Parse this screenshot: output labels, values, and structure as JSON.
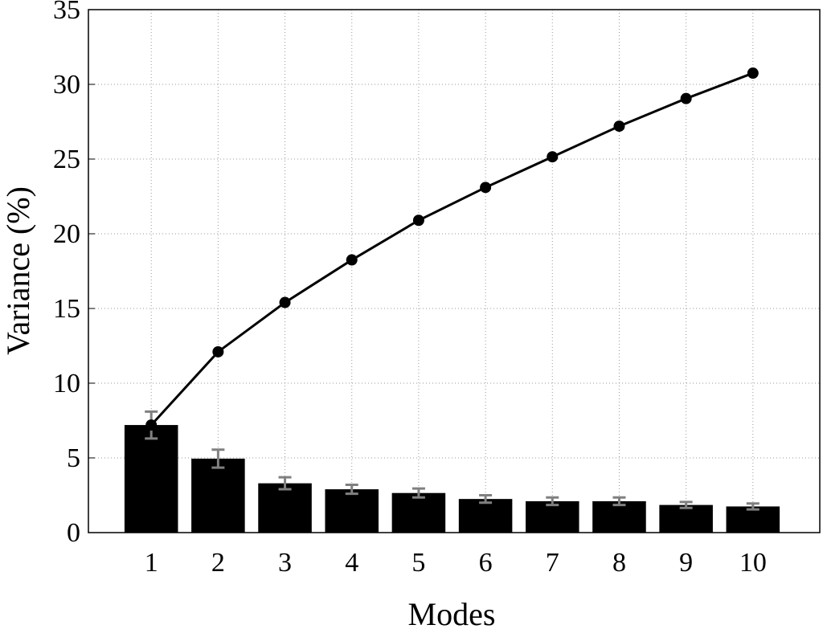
{
  "chart_data": {
    "type": "bar_line",
    "x_label": "Modes",
    "y_label": "Variance (%)",
    "x": [
      1,
      2,
      3,
      4,
      5,
      6,
      7,
      8,
      9,
      10
    ],
    "xlim": [
      0.06,
      11
    ],
    "xticks": [
      1,
      2,
      3,
      4,
      5,
      6,
      7,
      8,
      9,
      10
    ],
    "ylim": [
      0,
      35
    ],
    "yticks": [
      0,
      5,
      10,
      15,
      20,
      25,
      30,
      35
    ],
    "grid": true,
    "series": [
      {
        "type": "bar",
        "color": "#000000",
        "error_color": "#808080",
        "values": [
          7.2,
          4.95,
          3.3,
          2.9,
          2.65,
          2.25,
          2.1,
          2.1,
          1.85,
          1.75
        ],
        "errors": [
          0.9,
          0.6,
          0.4,
          0.3,
          0.3,
          0.25,
          0.25,
          0.25,
          0.2,
          0.2
        ]
      },
      {
        "type": "line",
        "color": "#000000",
        "values": [
          7.2,
          12.1,
          15.4,
          18.25,
          20.9,
          23.1,
          25.15,
          27.2,
          29.05,
          30.75
        ]
      }
    ]
  }
}
